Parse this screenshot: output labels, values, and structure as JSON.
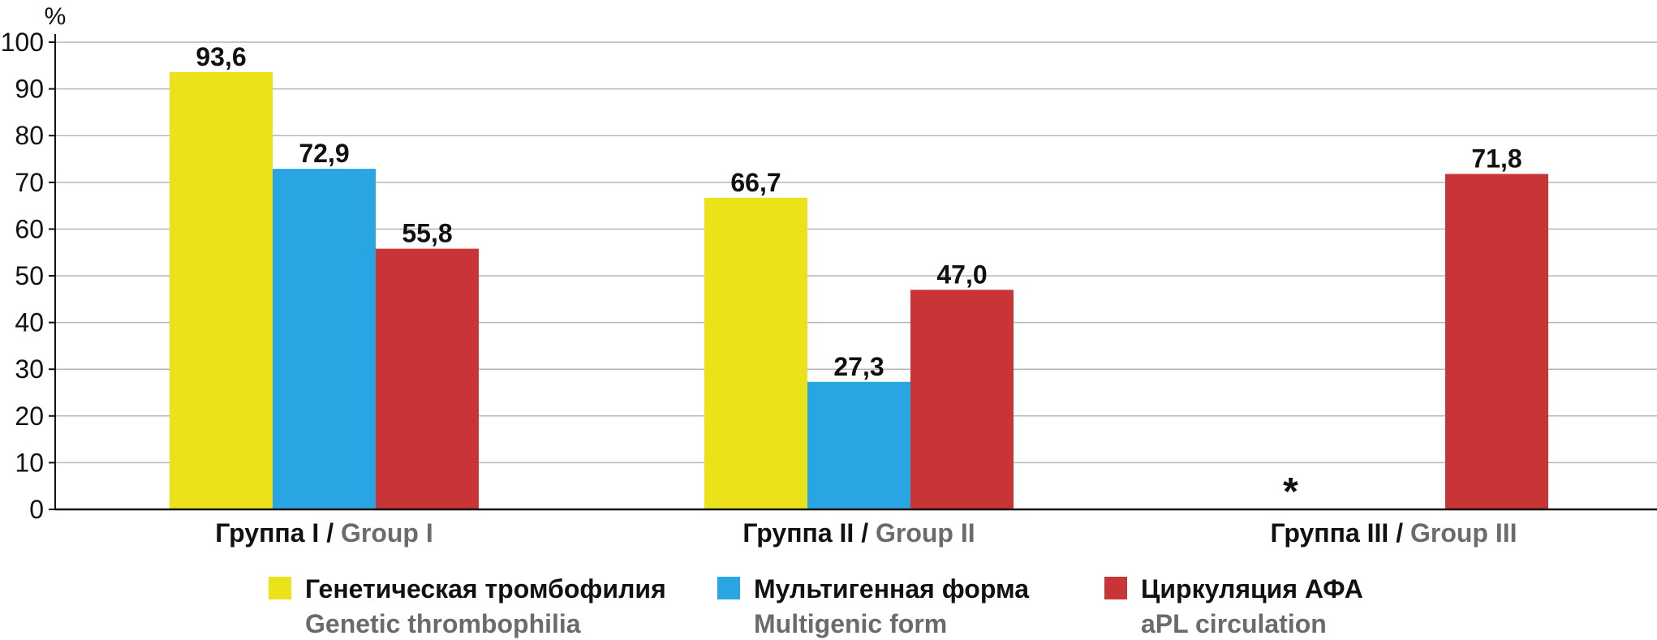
{
  "chart_data": {
    "type": "bar",
    "ylabel": "%",
    "ylim": [
      0,
      100
    ],
    "yticks": [
      "0",
      "10",
      "20",
      "30",
      "40",
      "50",
      "60",
      "70",
      "80",
      "90",
      "100"
    ],
    "grid": true,
    "categories": [
      {
        "ru": "Группа I",
        "sep": " / ",
        "en": "Group I"
      },
      {
        "ru": "Группа II",
        "sep": " / ",
        "en": "Group II"
      },
      {
        "ru": "Группа III",
        "sep": " / ",
        "en": "Group III"
      }
    ],
    "series": [
      {
        "name_ru": "Генетическая тромбофилия",
        "name_en": "Genetic thrombophilia",
        "color": "#ebe21a",
        "values": [
          93.6,
          66.7,
          null
        ],
        "labels": [
          "93,6",
          "66,7",
          "*"
        ]
      },
      {
        "name_ru": "Мультигенная форма",
        "name_en": "Multigenic form",
        "color": "#2aa5e3",
        "values": [
          72.9,
          27.3,
          null
        ],
        "labels": [
          "72,9",
          "27,3",
          ""
        ]
      },
      {
        "name_ru": "Циркуляция АФА",
        "name_en": "aPL circulation",
        "color": "#c93436",
        "values": [
          55.8,
          47.0,
          71.8
        ],
        "labels": [
          "55,8",
          "47,0",
          "71,8"
        ]
      }
    ],
    "legend_position": "bottom"
  }
}
